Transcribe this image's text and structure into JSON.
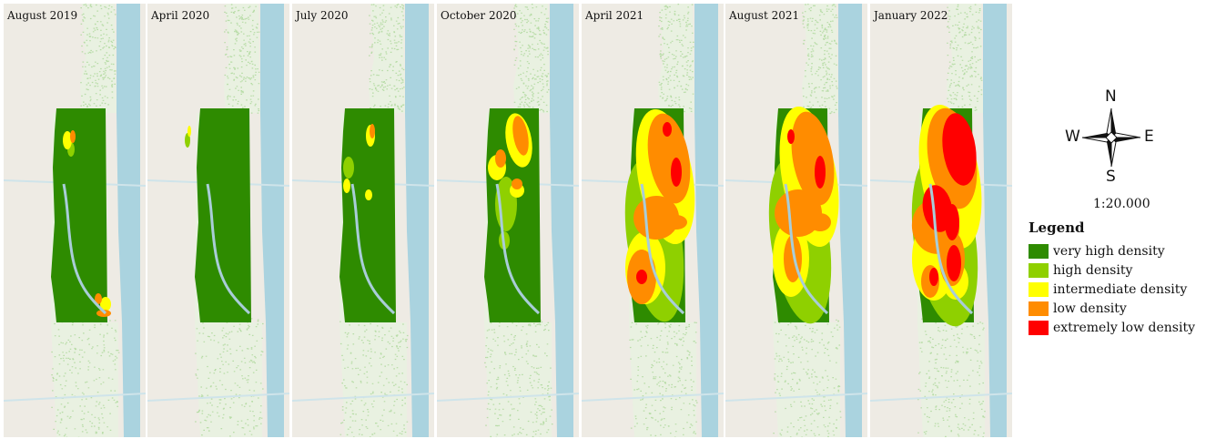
{
  "panels": [
    {
      "label": "August 2019",
      "stage": 0
    },
    {
      "label": "April 2020",
      "stage": 1
    },
    {
      "label": "July 2020",
      "stage": 2
    },
    {
      "label": "October 2020",
      "stage": 3
    },
    {
      "label": "April 2021",
      "stage": 4
    },
    {
      "label": "August 2021",
      "stage": 5
    },
    {
      "label": "January 2022",
      "stage": 6
    }
  ],
  "compass": {
    "north": "N",
    "south": "S",
    "east": "E",
    "west": "W"
  },
  "scale": "1:20.000",
  "legend": {
    "title": "Legend",
    "items": [
      {
        "label": "very high density",
        "color": "#2e8b00"
      },
      {
        "label": "high density",
        "color": "#8fd000"
      },
      {
        "label": "intermediate density",
        "color": "#ffff00"
      },
      {
        "label": "low density",
        "color": "#ff8c00"
      },
      {
        "label": "extremely low density",
        "color": "#ff0000"
      }
    ]
  },
  "colors": {
    "land": "#eeebe4",
    "water": "#aad3df",
    "vegetation_texture": "#b7dca6",
    "road": "#cfe4ea"
  }
}
